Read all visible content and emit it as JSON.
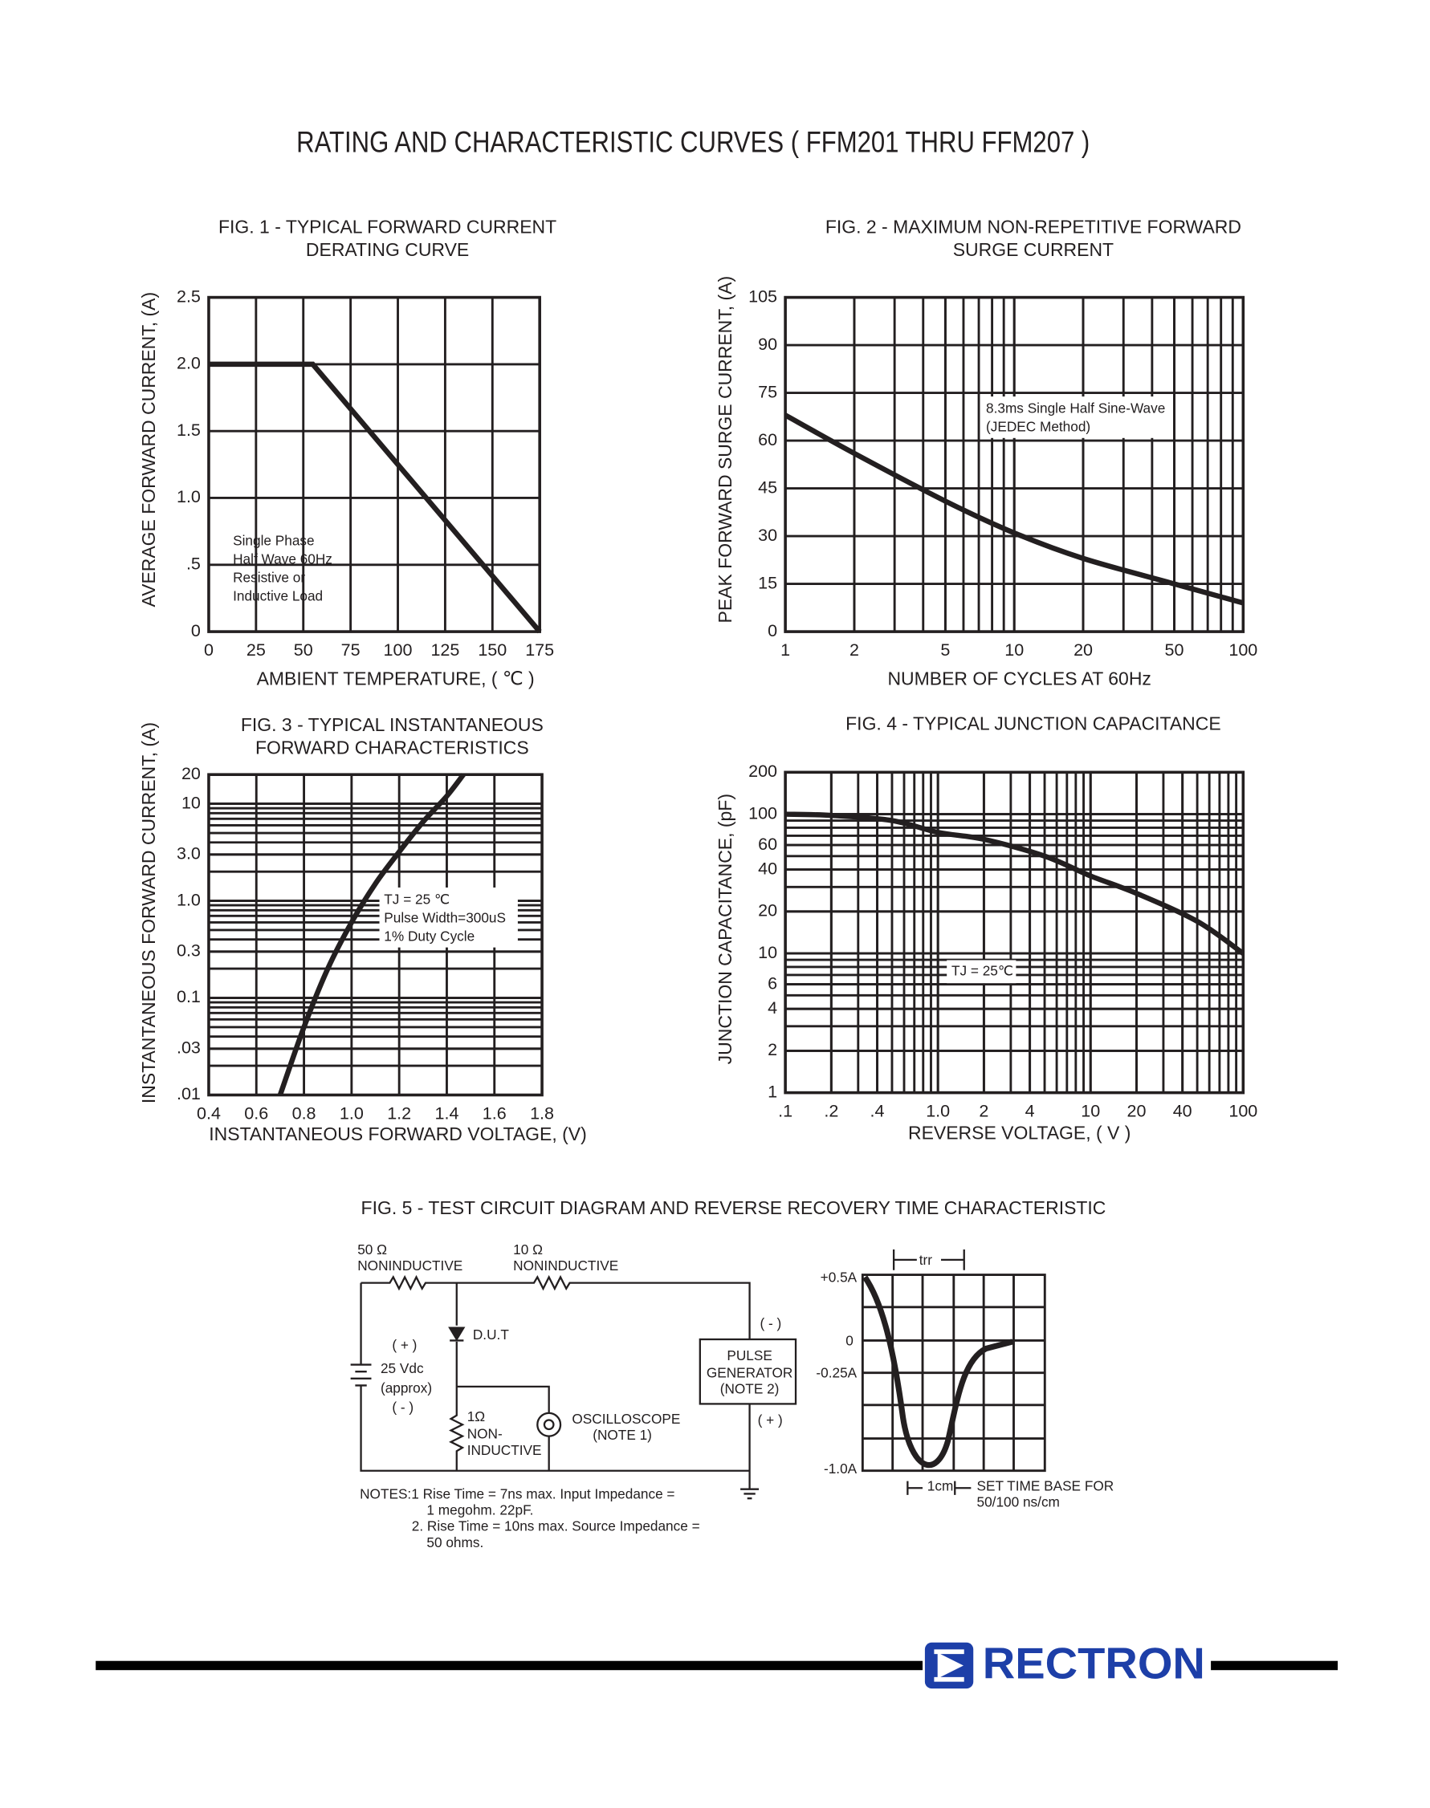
{
  "header": {
    "title": "RATING AND CHARACTERISTIC CURVES ( FFM201 THRU FFM207 )"
  },
  "chart_data": [
    {
      "type": "line",
      "title": [
        "FIG. 1 - TYPICAL FORWARD CURRENT",
        "DERATING CURVE"
      ],
      "x_label": "AMBIENT TEMPERATURE, ( ℃ )",
      "y_label": "AVERAGE FORWARD CURRENT, (A)",
      "x": [
        0,
        55,
        175
      ],
      "series": [
        {
          "color": "#231f20",
          "values": [
            2,
            2,
            0
          ]
        }
      ],
      "xlim": [
        0,
        175
      ],
      "xticks": [
        0,
        25,
        50,
        75,
        100,
        125,
        150,
        175
      ],
      "ylim": [
        0,
        2.5
      ],
      "yticks": [
        0,
        {
          "value": 0.5,
          "label": ".5"
        },
        {
          "value": 1,
          "label": "1.0"
        },
        1.5,
        {
          "value": 2,
          "label": "2.0"
        },
        2.5
      ],
      "grid": true,
      "xlog": false,
      "ylog": false,
      "annotation": [
        "Single Phase",
        "Half Wave 60Hz",
        "Resistive or",
        "Inductive Load"
      ]
    },
    {
      "type": "line",
      "title": [
        "FIG. 2 - MAXIMUM NON-REPETITIVE FORWARD",
        "SURGE CURRENT"
      ],
      "x_label": "NUMBER OF CYCLES AT 60Hz",
      "y_label": "PEAK FORWARD SURGE CURRENT, (A)",
      "x": [
        1,
        2,
        5,
        10,
        20,
        50,
        100
      ],
      "series": [
        {
          "color": "#231f20",
          "values": [
            68,
            56,
            41,
            31,
            23,
            15,
            9
          ]
        }
      ],
      "xlim": [
        1,
        100
      ],
      "xticks": [
        1,
        2,
        5,
        10,
        20,
        50,
        100
      ],
      "ylim": [
        0,
        105
      ],
      "yticks": [
        0,
        15,
        30,
        45,
        60,
        75,
        90,
        105
      ],
      "grid": true,
      "xlog": true,
      "ylog": false,
      "annotation": [
        "8.3ms Single Half Sine-Wave",
        "(JEDEC Method)"
      ]
    },
    {
      "type": "line",
      "title": [
        "FIG. 3 - TYPICAL INSTANTANEOUS",
        "FORWARD CHARACTERISTICS"
      ],
      "x_label": "INSTANTANEOUS FORWARD VOLTAGE, (V)",
      "y_label": "INSTANTANEOUS FORWARD CURRENT, (A)",
      "x": [
        0.7,
        0.8,
        0.9,
        1.0,
        1.1,
        1.2,
        1.3,
        1.4,
        1.47
      ],
      "series": [
        {
          "color": "#231f20",
          "values": [
            0.01,
            0.05,
            0.2,
            0.6,
            1.5,
            3.2,
            6.5,
            12,
            20
          ]
        }
      ],
      "xlim": [
        0.4,
        1.8
      ],
      "xticks": [
        0.4,
        0.6,
        0.8,
        {
          "value": 1,
          "label": "1.0"
        },
        1.2,
        1.4,
        1.6,
        1.8
      ],
      "ylim": [
        0.01,
        20
      ],
      "yticks": [
        {
          "value": 0.01,
          "label": ".01"
        },
        {
          "value": 0.03,
          "label": ".03"
        },
        0.1,
        0.3,
        {
          "value": 1,
          "label": "1.0"
        },
        {
          "value": 3,
          "label": "3.0"
        },
        10,
        20
      ],
      "grid": true,
      "xlog": false,
      "ylog": true,
      "annotation": [
        "TJ = 25 ℃",
        "Pulse Width=300uS",
        "1% Duty Cycle"
      ]
    },
    {
      "type": "line",
      "title": [
        "FIG. 4 - TYPICAL JUNCTION CAPACITANCE"
      ],
      "x_label": "REVERSE VOLTAGE, ( V )",
      "y_label": "JUNCTION CAPACITANCE, (pF)",
      "x": [
        0.1,
        0.2,
        0.5,
        1,
        2,
        5,
        10,
        20,
        50,
        100
      ],
      "series": [
        {
          "color": "#231f20",
          "values": [
            100,
            98,
            90,
            74,
            66,
            50,
            36,
            27,
            17,
            10
          ]
        }
      ],
      "xlim": [
        0.1,
        100
      ],
      "xticks": [
        {
          "value": 0.1,
          "label": ".1"
        },
        {
          "value": 0.2,
          "label": ".2"
        },
        {
          "value": 0.4,
          "label": ".4"
        },
        {
          "value": 1,
          "label": "1.0"
        },
        2,
        4,
        10,
        20,
        40,
        100
      ],
      "ylim": [
        1,
        200
      ],
      "yticks": [
        1,
        2,
        4,
        6,
        10,
        20,
        40,
        60,
        100,
        200
      ],
      "grid": true,
      "xlog": true,
      "ylog": true,
      "annotation": [
        "TJ = 25℃"
      ]
    }
  ],
  "figure5": {
    "title": "FIG. 5 - TEST CIRCUIT DIAGRAM  AND REVERSE RECOVERY TIME CHARACTERISTIC",
    "labels": [
      "50 Ω",
      "NONINDUCTIVE",
      "10 Ω",
      "NONINDUCTIVE",
      "D.U.T",
      "( + )",
      "25 Vdc",
      "(approx)",
      "( - )",
      "1Ω",
      "NON-",
      "INDUCTIVE",
      "OSCILLOSCOPE",
      "(NOTE 1)",
      "( - )",
      "PULSE",
      "GENERATOR",
      "(NOTE 2)",
      "( + )"
    ],
    "notes": [
      "NOTES:1  Rise Time = 7ns max. Input Impedance =",
      "1 megohm. 22pF.",
      "2. Rise Time = 10ns max. Source Impedance =",
      "50 ohms."
    ],
    "waveform": [
      "trr",
      "+0.5A",
      "0",
      "-0.25A",
      "-1.0A",
      "1cm",
      "SET TIME BASE FOR",
      "50/100 ns/cm"
    ]
  },
  "footer": {
    "brand": "RECTRON"
  }
}
